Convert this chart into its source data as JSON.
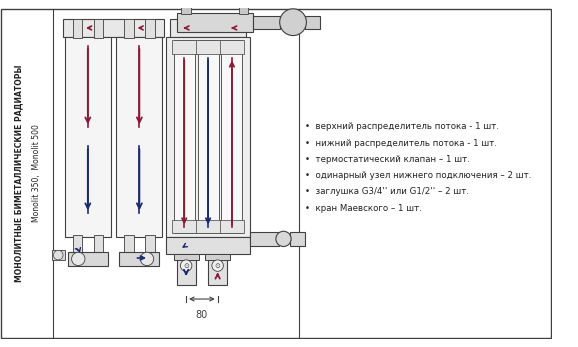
{
  "bg_color": "#ffffff",
  "line_color": "#404040",
  "red_color": "#8b1a3a",
  "blue_color": "#1a2a6e",
  "left_text1": "МОНОЛИТНЫЕ БИМЕТАЛЛИЧЕСКИЕ РАДИАТОРЫ",
  "left_text2": "Monolit 350,  Monolit 500",
  "bullet_lines": [
    "верхний распределитель потока - 1 шт.",
    "нижний распределитель потока - 1 шт.",
    "термостатический клапан – 1 шт.",
    "одинарный узел нижнего подключения – 2 шт.",
    "заглушка G3/4'' или G1/2'' – 2 шт.",
    "кран Маевского – 1 шт."
  ],
  "dim_label": "80"
}
